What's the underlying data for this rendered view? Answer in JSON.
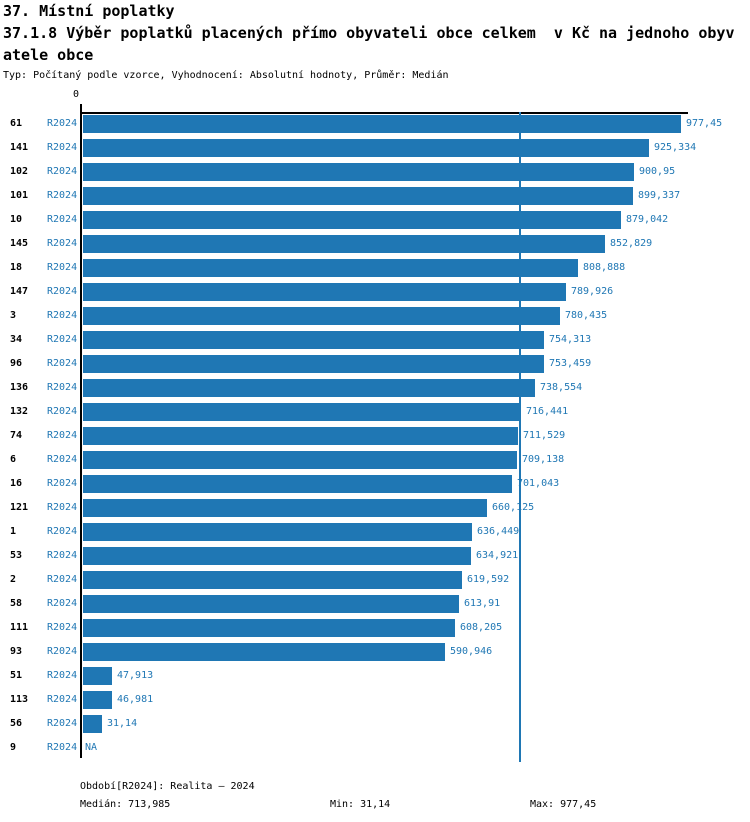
{
  "header": {
    "title_line1": "37. Místní poplatky",
    "title_line2": "37.1.8 Výběr poplatků placených přímo obyvateli obce celkem  v Kč na jednoho obyv",
    "title_line3": "atele obce",
    "meta": "Typ: Počítaný podle vzorce, Vyhodnocení: Absolutní hodnoty, Průměr: Medián"
  },
  "chart_data": {
    "type": "bar",
    "orientation": "horizontal",
    "title": "37.1.8 Výběr poplatků placených přímo obyvateli obce celkem v Kč na jednoho obyvatele obce",
    "axis_zero_label": "0",
    "series_label": "R2024",
    "categories": [
      "61",
      "141",
      "102",
      "101",
      "10",
      "145",
      "18",
      "147",
      "3",
      "34",
      "96",
      "136",
      "132",
      "74",
      "6",
      "16",
      "121",
      "1",
      "53",
      "2",
      "58",
      "111",
      "93",
      "51",
      "113",
      "56",
      "9"
    ],
    "values": [
      977.45,
      925.334,
      900.95,
      899.337,
      879.042,
      852.829,
      808.888,
      789.926,
      780.435,
      754.313,
      753.459,
      738.554,
      716.441,
      711.529,
      709.138,
      701.043,
      660.125,
      636.449,
      634.921,
      619.592,
      613.91,
      608.205,
      590.946,
      47.913,
      46.981,
      31.14,
      null
    ],
    "value_labels": [
      "977,45",
      "925,334",
      "900,95",
      "899,337",
      "879,042",
      "852,829",
      "808,888",
      "789,926",
      "780,435",
      "754,313",
      "753,459",
      "738,554",
      "716,441",
      "711,529",
      "709,138",
      "701,043",
      "660,125",
      "636,449",
      "634,921",
      "619,592",
      "613,91",
      "608,205",
      "590,946",
      "47,913",
      "46,981",
      "31,14",
      "NA"
    ],
    "median_value": 713.985,
    "xlim": [
      0,
      990
    ],
    "grid": false,
    "legend": false,
    "bar_color": "#1f77b4",
    "label_color": "#1f77b4",
    "median_line_color": "#1f77b4"
  },
  "footer": {
    "period": "Období[R2024]: Realita – 2024",
    "median": "Medián: 713,985",
    "min": "Min: 31,14",
    "max": "Max: 977,45"
  }
}
